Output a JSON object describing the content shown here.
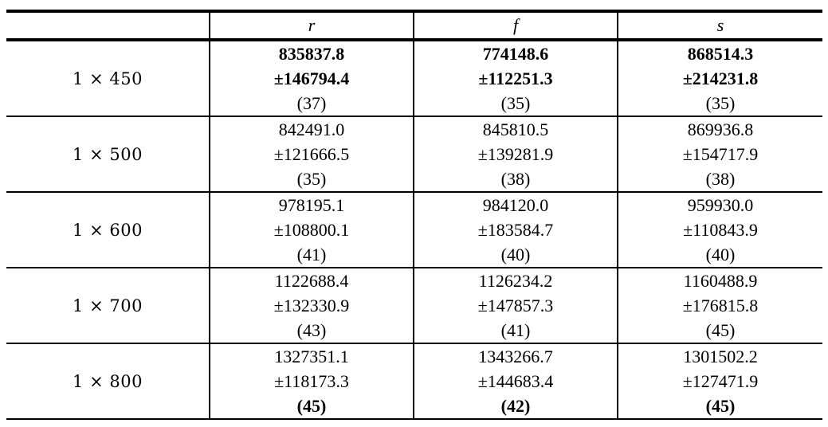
{
  "table": {
    "columns": [
      "",
      "r",
      "f",
      "s"
    ],
    "rows": [
      {
        "label": "1 × 450",
        "cells": [
          {
            "mean": "835837.8",
            "std": "±146794.4",
            "n": "(37)",
            "mean_bold": true,
            "n_bold": false
          },
          {
            "mean": "774148.6",
            "std": "±112251.3",
            "n": "(35)",
            "mean_bold": true,
            "n_bold": false
          },
          {
            "mean": "868514.3",
            "std": "±214231.8",
            "n": "(35)",
            "mean_bold": true,
            "n_bold": false
          }
        ]
      },
      {
        "label": "1 × 500",
        "cells": [
          {
            "mean": "842491.0",
            "std": "±121666.5",
            "n": "(35)",
            "mean_bold": false,
            "n_bold": false
          },
          {
            "mean": "845810.5",
            "std": "±139281.9",
            "n": "(38)",
            "mean_bold": false,
            "n_bold": false
          },
          {
            "mean": "869936.8",
            "std": "±154717.9",
            "n": "(38)",
            "mean_bold": false,
            "n_bold": false
          }
        ]
      },
      {
        "label": "1 × 600",
        "cells": [
          {
            "mean": "978195.1",
            "std": "±108800.1",
            "n": "(41)",
            "mean_bold": false,
            "n_bold": false
          },
          {
            "mean": "984120.0",
            "std": "±183584.7",
            "n": "(40)",
            "mean_bold": false,
            "n_bold": false
          },
          {
            "mean": "959930.0",
            "std": "±110843.9",
            "n": "(40)",
            "mean_bold": false,
            "n_bold": false
          }
        ]
      },
      {
        "label": "1 × 700",
        "cells": [
          {
            "mean": "1122688.4",
            "std": "±132330.9",
            "n": "(43)",
            "mean_bold": false,
            "n_bold": false
          },
          {
            "mean": "1126234.2",
            "std": "±147857.3",
            "n": "(41)",
            "mean_bold": false,
            "n_bold": false
          },
          {
            "mean": "1160488.9",
            "std": "±176815.8",
            "n": "(45)",
            "mean_bold": false,
            "n_bold": false
          }
        ]
      },
      {
        "label": "1 × 800",
        "cells": [
          {
            "mean": "1327351.1",
            "std": "±118173.3",
            "n": "(45)",
            "mean_bold": false,
            "n_bold": true
          },
          {
            "mean": "1343266.7",
            "std": "±144683.4",
            "n": "(42)",
            "mean_bold": false,
            "n_bold": true
          },
          {
            "mean": "1301502.2",
            "std": "±127471.9",
            "n": "(45)",
            "mean_bold": false,
            "n_bold": true
          }
        ]
      }
    ]
  }
}
